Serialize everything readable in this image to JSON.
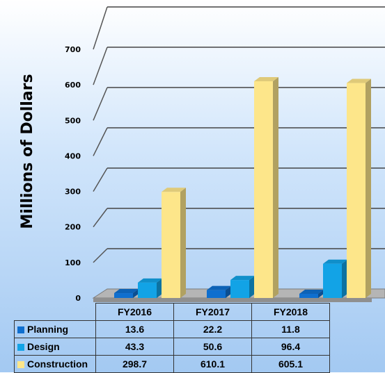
{
  "chart_data": {
    "type": "bar",
    "categories": [
      "FY2016",
      "FY2017",
      "FY2018"
    ],
    "series": [
      {
        "name": "Planning",
        "values": [
          13.6,
          22.2,
          11.8
        ],
        "color": "#0f6fcf"
      },
      {
        "name": "Design",
        "values": [
          43.3,
          50.6,
          96.4
        ],
        "color": "#12a3e6"
      },
      {
        "name": "Construction",
        "values": [
          298.7,
          610.1,
          605.1
        ],
        "color": "#fde68a"
      }
    ],
    "ylabel": "Millions of Dollars",
    "ylim": [
      0,
      700
    ],
    "yticks": [
      0,
      100,
      200,
      300,
      400,
      500,
      600,
      700
    ],
    "grid": true,
    "legend": "data-table-bottom"
  }
}
